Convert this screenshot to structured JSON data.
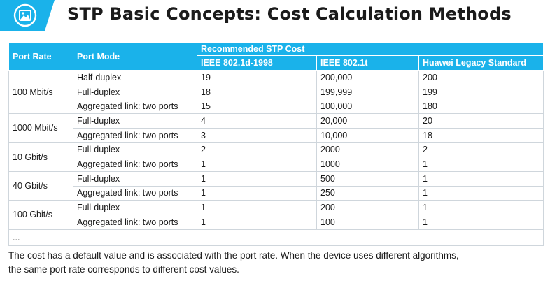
{
  "page": {
    "title": "STP Basic Concepts: Cost Calculation Methods"
  },
  "badge": {
    "icon": "image-icon",
    "color": "#1ab2ea"
  },
  "table": {
    "headers": {
      "port_rate": "Port Rate",
      "port_mode": "Port Mode",
      "group": "Recommended STP Cost",
      "std1": "IEEE 802.1d-1998",
      "std2": "IEEE 802.1t",
      "std3": "Huawei Legacy Standard"
    },
    "groups": [
      {
        "rate": "100 Mbit/s",
        "rows": [
          {
            "mode": "Half-duplex",
            "c1": "19",
            "c2": "200,000",
            "c3": "200"
          },
          {
            "mode": "Full-duplex",
            "c1": "18",
            "c2": "199,999",
            "c3": "199"
          },
          {
            "mode": "Aggregated link: two ports",
            "c1": "15",
            "c2": "100,000",
            "c3": "180"
          }
        ]
      },
      {
        "rate": "1000 Mbit/s",
        "rows": [
          {
            "mode": "Full-duplex",
            "c1": "4",
            "c2": "20,000",
            "c3": "20"
          },
          {
            "mode": "Aggregated link: two ports",
            "c1": "3",
            "c2": "10,000",
            "c3": "18"
          }
        ]
      },
      {
        "rate": "10 Gbit/s",
        "rows": [
          {
            "mode": "Full-duplex",
            "c1": "2",
            "c2": "2000",
            "c3": "2"
          },
          {
            "mode": "Aggregated link: two ports",
            "c1": "1",
            "c2": "1000",
            "c3": "1"
          }
        ]
      },
      {
        "rate": "40 Gbit/s",
        "rows": [
          {
            "mode": "Full-duplex",
            "c1": "1",
            "c2": "500",
            "c3": "1"
          },
          {
            "mode": "Aggregated link: two ports",
            "c1": "1",
            "c2": "250",
            "c3": "1"
          }
        ]
      },
      {
        "rate": "100 Gbit/s",
        "rows": [
          {
            "mode": "Full-duplex",
            "c1": "1",
            "c2": "200",
            "c3": "1"
          },
          {
            "mode": "Aggregated link: two ports",
            "c1": "1",
            "c2": "100",
            "c3": "1"
          }
        ]
      }
    ],
    "ellipsis": "..."
  },
  "note": {
    "line1": "The cost has a default value and is associated with the port rate. When the device uses different  algorithms,",
    "line2": "the same port rate corresponds to different  cost values."
  }
}
